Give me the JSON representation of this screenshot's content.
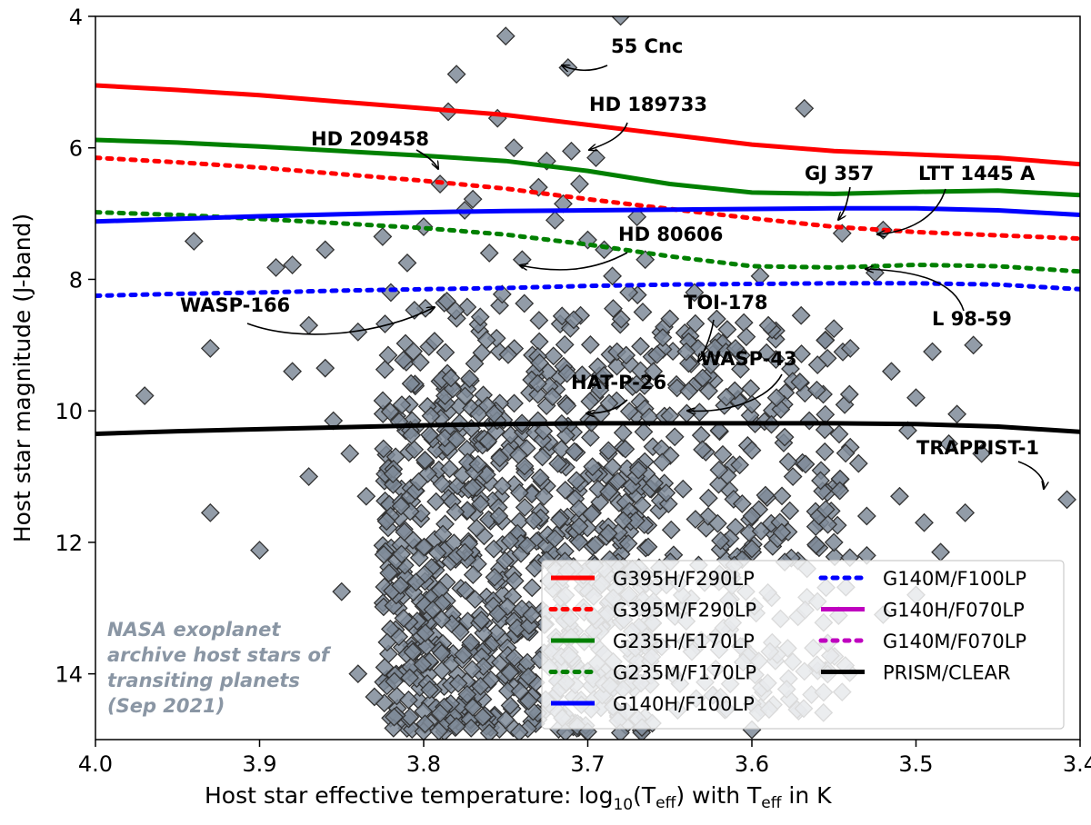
{
  "chart_data": {
    "type": "scatter",
    "title": "",
    "xlabel_main": "Host star effective temperature: log",
    "xlabel_sub": "10",
    "xlabel_mid1": "(T",
    "xlabel_eff1": "eff",
    "xlabel_mid2": ") with T",
    "xlabel_eff2": "eff",
    "xlabel_end": " in K",
    "ylabel": "Host star magnitude (J-band)",
    "xlim": [
      4.0,
      3.4
    ],
    "ylim": [
      15,
      4
    ],
    "y_inverted": true,
    "xticks": [
      4.0,
      3.9,
      3.8,
      3.7,
      3.6,
      3.5,
      3.4
    ],
    "xtick_labels": [
      "4.0",
      "3.9",
      "3.8",
      "3.7",
      "3.6",
      "3.5",
      "3.4"
    ],
    "yticks": [
      4,
      6,
      8,
      10,
      12,
      14
    ],
    "ytick_labels": [
      "4",
      "6",
      "8",
      "10",
      "12",
      "14"
    ],
    "watermark": [
      "NASA exoplanet",
      "archive host stars of",
      "transiting planets",
      "(Sep 2021)"
    ],
    "colors": {
      "red": "#ff0000",
      "green": "#008000",
      "blue": "#0000ff",
      "magenta": "#bf00bf",
      "black": "#000000",
      "marker_fill": "#7f8b99",
      "marker_edge": "#333333",
      "watermark": "#8a96a4"
    },
    "series": [
      {
        "name": "G395H/F290LP",
        "color": "#ff0000",
        "style": "solid",
        "x": [
          4.0,
          3.95,
          3.9,
          3.85,
          3.8,
          3.75,
          3.7,
          3.65,
          3.6,
          3.55,
          3.5,
          3.45,
          3.4
        ],
        "y": [
          5.05,
          5.12,
          5.2,
          5.3,
          5.4,
          5.5,
          5.65,
          5.8,
          5.95,
          6.05,
          6.1,
          6.15,
          6.25
        ]
      },
      {
        "name": "G395M/F290LP",
        "color": "#ff0000",
        "style": "dotted",
        "x": [
          4.0,
          3.95,
          3.9,
          3.85,
          3.8,
          3.75,
          3.7,
          3.65,
          3.6,
          3.55,
          3.5,
          3.45,
          3.4
        ],
        "y": [
          6.15,
          6.22,
          6.3,
          6.4,
          6.5,
          6.62,
          6.78,
          6.93,
          7.07,
          7.2,
          7.28,
          7.33,
          7.38
        ]
      },
      {
        "name": "G235H/F170LP",
        "color": "#008000",
        "style": "solid",
        "x": [
          4.0,
          3.95,
          3.9,
          3.85,
          3.8,
          3.75,
          3.7,
          3.65,
          3.6,
          3.55,
          3.5,
          3.45,
          3.4
        ],
        "y": [
          5.88,
          5.92,
          5.98,
          6.05,
          6.12,
          6.2,
          6.35,
          6.55,
          6.68,
          6.7,
          6.67,
          6.65,
          6.72
        ]
      },
      {
        "name": "G235M/F170LP",
        "color": "#008000",
        "style": "dotted",
        "x": [
          4.0,
          3.95,
          3.9,
          3.85,
          3.8,
          3.75,
          3.7,
          3.65,
          3.6,
          3.55,
          3.5,
          3.45,
          3.4
        ],
        "y": [
          6.98,
          7.02,
          7.08,
          7.15,
          7.22,
          7.32,
          7.47,
          7.65,
          7.8,
          7.82,
          7.78,
          7.8,
          7.88
        ]
      },
      {
        "name": "G140H/F100LP",
        "color": "#0000ff",
        "style": "solid",
        "x": [
          4.0,
          3.95,
          3.9,
          3.85,
          3.8,
          3.75,
          3.7,
          3.65,
          3.6,
          3.55,
          3.5,
          3.45,
          3.4
        ],
        "y": [
          7.12,
          7.08,
          7.04,
          7.01,
          6.98,
          6.96,
          6.95,
          6.94,
          6.93,
          6.92,
          6.92,
          6.95,
          7.02
        ]
      },
      {
        "name": "G140M/F100LP",
        "color": "#0000ff",
        "style": "dotted",
        "x": [
          4.0,
          3.95,
          3.9,
          3.85,
          3.8,
          3.75,
          3.7,
          3.65,
          3.6,
          3.55,
          3.5,
          3.45,
          3.4
        ],
        "y": [
          8.25,
          8.22,
          8.2,
          8.17,
          8.15,
          8.13,
          8.1,
          8.08,
          8.07,
          8.06,
          8.06,
          8.08,
          8.15
        ]
      },
      {
        "name": "G140H/F070LP",
        "color": "#bf00bf",
        "style": "solid",
        "x": [],
        "y": []
      },
      {
        "name": "G140M/F070LP",
        "color": "#bf00bf",
        "style": "dotted",
        "x": [],
        "y": []
      },
      {
        "name": "PRISM/CLEAR",
        "color": "#000000",
        "style": "solid",
        "x": [
          4.0,
          3.95,
          3.9,
          3.85,
          3.8,
          3.75,
          3.7,
          3.65,
          3.6,
          3.55,
          3.5,
          3.45,
          3.4
        ],
        "y": [
          10.35,
          10.31,
          10.28,
          10.25,
          10.22,
          10.2,
          10.19,
          10.19,
          10.19,
          10.19,
          10.2,
          10.24,
          10.32
        ]
      }
    ],
    "legend_left": [
      "G395H/F290LP",
      "G395M/F290LP",
      "G235H/F170LP",
      "G235M/F170LP",
      "G140H/F100LP"
    ],
    "legend_right": [
      "G140M/F100LP",
      "G140H/F070LP",
      "G140M/F070LP",
      "PRISM/CLEAR"
    ],
    "annotations": [
      {
        "text": "55 Cnc",
        "x": 3.714,
        "y": 4.78
      },
      {
        "text": "HD 189733",
        "x": 3.695,
        "y": 6.15
      },
      {
        "text": "HD 209458",
        "x": 3.785,
        "y": 6.45
      },
      {
        "text": "GJ 357",
        "x": 3.53,
        "y": 7.25
      },
      {
        "text": "LTT 1445 A",
        "x": 3.52,
        "y": 7.3
      },
      {
        "text": "HD 80606",
        "x": 3.74,
        "y": 7.75
      },
      {
        "text": "L 98-59",
        "x": 3.525,
        "y": 7.9
      },
      {
        "text": "WASP-166",
        "x": 3.785,
        "y": 8.45
      },
      {
        "text": "TOI-178",
        "x": 3.625,
        "y": 9.3
      },
      {
        "text": "WASP-43",
        "x": 3.645,
        "y": 10.0
      },
      {
        "text": "HAT-P-26",
        "x": 3.7,
        "y": 10.12
      },
      {
        "text": "TRAPPIST-1",
        "x": 3.408,
        "y": 11.35
      }
    ],
    "points_isolated": [
      [
        3.97,
        9.77
      ],
      [
        3.94,
        7.42
      ],
      [
        3.93,
        9.05
      ],
      [
        3.93,
        11.55
      ],
      [
        3.9,
        12.12
      ],
      [
        3.89,
        7.82
      ],
      [
        3.88,
        7.78
      ],
      [
        3.88,
        9.4
      ],
      [
        3.87,
        8.7
      ],
      [
        3.87,
        11.0
      ],
      [
        3.86,
        7.55
      ],
      [
        3.86,
        9.35
      ],
      [
        3.855,
        10.15
      ],
      [
        3.85,
        12.75
      ],
      [
        3.845,
        10.65
      ],
      [
        3.84,
        8.8
      ],
      [
        3.835,
        11.3
      ],
      [
        3.825,
        7.35
      ],
      [
        3.82,
        8.2
      ],
      [
        3.81,
        7.75
      ],
      [
        3.8,
        7.2
      ],
      [
        3.79,
        6.55
      ],
      [
        3.785,
        5.45
      ],
      [
        3.78,
        4.88
      ],
      [
        3.775,
        6.95
      ],
      [
        3.77,
        6.78
      ],
      [
        3.76,
        7.6
      ],
      [
        3.755,
        5.55
      ],
      [
        3.75,
        4.3
      ],
      [
        3.745,
        6.0
      ],
      [
        3.74,
        7.7
      ],
      [
        3.73,
        6.6
      ],
      [
        3.725,
        6.2
      ],
      [
        3.72,
        7.1
      ],
      [
        3.715,
        6.85
      ],
      [
        3.712,
        4.78
      ],
      [
        3.71,
        6.05
      ],
      [
        3.705,
        6.55
      ],
      [
        3.7,
        7.4
      ],
      [
        3.695,
        6.15
      ],
      [
        3.69,
        7.55
      ],
      [
        3.685,
        7.95
      ],
      [
        3.68,
        4.0
      ],
      [
        3.675,
        8.2
      ],
      [
        3.67,
        7.05
      ],
      [
        3.665,
        7.7
      ],
      [
        3.66,
        9.4
      ],
      [
        3.65,
        8.6
      ],
      [
        3.64,
        9.1
      ],
      [
        3.635,
        8.2
      ],
      [
        3.63,
        9.5
      ],
      [
        3.625,
        9.3
      ],
      [
        3.62,
        10.9
      ],
      [
        3.61,
        9.05
      ],
      [
        3.6,
        9.9
      ],
      [
        3.595,
        7.95
      ],
      [
        3.59,
        8.7
      ],
      [
        3.585,
        9.8
      ],
      [
        3.58,
        10.4
      ],
      [
        3.575,
        11.0
      ],
      [
        3.57,
        8.55
      ],
      [
        3.568,
        5.4
      ],
      [
        3.565,
        10.15
      ],
      [
        3.56,
        9.3
      ],
      [
        3.555,
        11.5
      ],
      [
        3.55,
        8.75
      ],
      [
        3.545,
        7.3
      ],
      [
        3.54,
        9.05
      ],
      [
        3.535,
        10.8
      ],
      [
        3.53,
        11.6
      ],
      [
        3.525,
        7.9
      ],
      [
        3.52,
        7.25
      ],
      [
        3.515,
        9.4
      ],
      [
        3.51,
        11.3
      ],
      [
        3.505,
        10.3
      ],
      [
        3.5,
        9.8
      ],
      [
        3.495,
        11.7
      ],
      [
        3.49,
        9.1
      ],
      [
        3.485,
        12.15
      ],
      [
        3.48,
        10.5
      ],
      [
        3.475,
        10.05
      ],
      [
        3.47,
        11.55
      ],
      [
        3.465,
        9.0
      ],
      [
        3.46,
        10.65
      ],
      [
        3.408,
        11.35
      ],
      [
        3.6,
        14.85
      ],
      [
        3.7,
        14.88
      ],
      [
        3.78,
        14.8
      ],
      [
        3.75,
        14.7
      ],
      [
        3.76,
        14.9
      ],
      [
        3.79,
        14.6
      ],
      [
        3.83,
        14.35
      ],
      [
        3.84,
        14.0
      ],
      [
        3.58,
        12.3
      ],
      [
        3.56,
        12.9
      ],
      [
        3.55,
        12.0
      ],
      [
        3.53,
        12.2
      ],
      [
        3.52,
        13.1
      ],
      [
        3.5,
        12.8
      ],
      [
        3.6,
        11.6
      ],
      [
        3.62,
        12.6
      ],
      [
        3.64,
        13.2
      ],
      [
        3.66,
        12.9
      ],
      [
        3.62,
        10.3
      ],
      [
        3.6,
        10.6
      ]
    ],
    "dense_cluster": {
      "x_range": [
        3.825,
        3.66
      ],
      "y_range": [
        8.2,
        14.9
      ],
      "count": 900,
      "seed": 7
    },
    "secondary_cluster": {
      "x_range": [
        3.66,
        3.54
      ],
      "y_range": [
        8.6,
        14.6
      ],
      "count": 260,
      "seed": 11
    }
  }
}
